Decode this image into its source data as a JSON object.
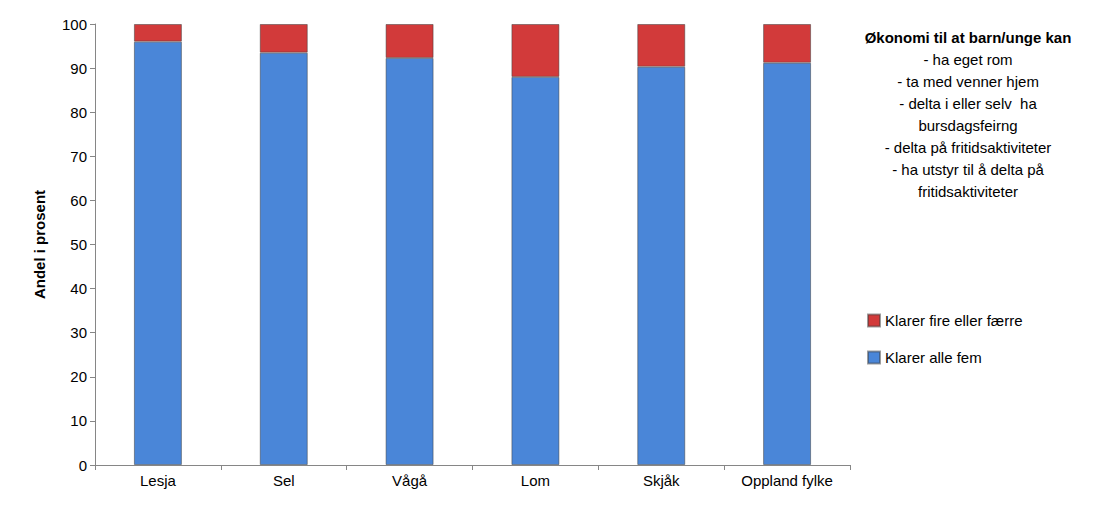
{
  "chart_data": {
    "type": "bar",
    "stacked": true,
    "grid": false,
    "legend": "right",
    "y_label": "Andel i prosent",
    "categories": [
      "Lesja",
      "Sel",
      "Vågå",
      "Lom",
      "Skjåk",
      "Oppland fylke"
    ],
    "series": [
      {
        "name": "Klarer alle fem",
        "color": "#4a86d8",
        "values": [
          96,
          93.5,
          92.3,
          88,
          90.3,
          91.2
        ]
      },
      {
        "name": "Klarer fire eller færre",
        "color": "#d23a3a",
        "values": [
          4,
          6.5,
          7.7,
          12,
          9.7,
          8.8
        ]
      }
    ],
    "ylim": [
      0,
      100
    ],
    "yticks": [
      0,
      10,
      20,
      30,
      40,
      50,
      60,
      70,
      80,
      90,
      100
    ],
    "annotation": {
      "title": "Økonomi til at barn/unge kan",
      "lines": [
        "- ha eget rom",
        "- ta med venner hjem",
        "- delta i eller selv  ha",
        "bursdagsfeirng",
        "- delta på fritidsaktiviteter",
        "- ha utstyr til å delta på",
        "fritidsaktiviteter"
      ]
    }
  }
}
